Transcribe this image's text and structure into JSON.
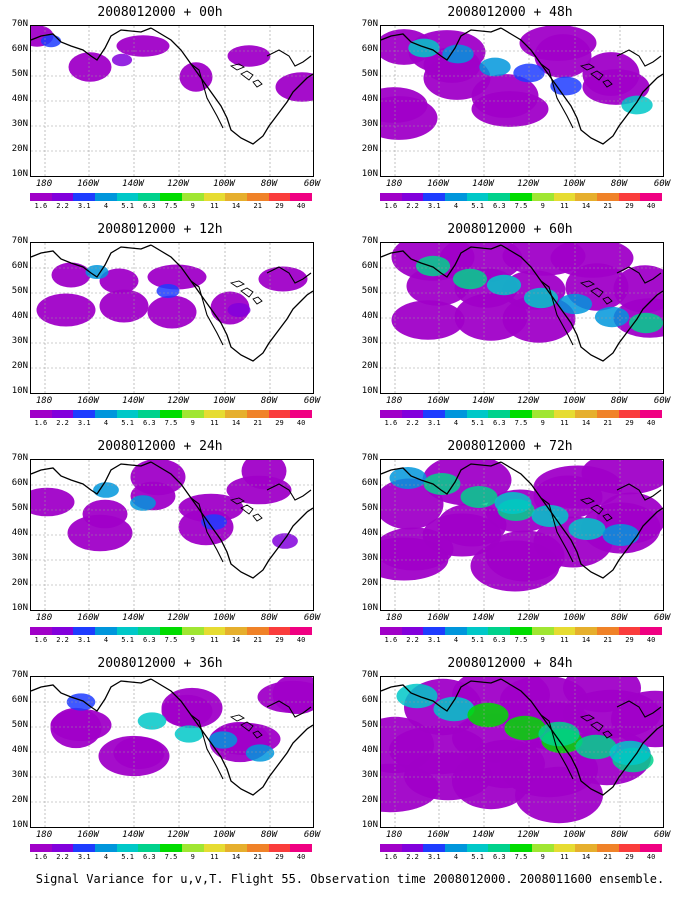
{
  "panels": [
    {
      "title": "2008012000 + 00h",
      "intensity": 0.15
    },
    {
      "title": "2008012000 + 48h",
      "intensity": 0.55
    },
    {
      "title": "2008012000 + 12h",
      "intensity": 0.25
    },
    {
      "title": "2008012000 + 60h",
      "intensity": 0.65
    },
    {
      "title": "2008012000 + 24h",
      "intensity": 0.35
    },
    {
      "title": "2008012000 + 72h",
      "intensity": 0.75
    },
    {
      "title": "2008012000 + 36h",
      "intensity": 0.45
    },
    {
      "title": "2008012000 + 84h",
      "intensity": 0.9
    }
  ],
  "lat_labels": [
    "70N",
    "60N",
    "50N",
    "40N",
    "30N",
    "20N",
    "10N"
  ],
  "lon_labels": [
    "180",
    "160W",
    "140W",
    "120W",
    "100W",
    "80W",
    "60W"
  ],
  "colorbar": {
    "colors": [
      "#a000c8",
      "#8200dc",
      "#1e3cff",
      "#0096dc",
      "#00c8c8",
      "#00d28c",
      "#00dc00",
      "#a0e632",
      "#e6dc32",
      "#e6af2d",
      "#f08228",
      "#fa3c3c",
      "#f00082"
    ],
    "labels": [
      "1.6",
      "2.2",
      "3.1",
      "4",
      "5.1",
      "6.3",
      "7.5",
      "9",
      "11",
      "14",
      "21",
      "29",
      "40"
    ]
  },
  "caption": "Signal Variance for u,v,T. Flight 55. Observation time 2008012000. 2008011600 ensemble."
}
